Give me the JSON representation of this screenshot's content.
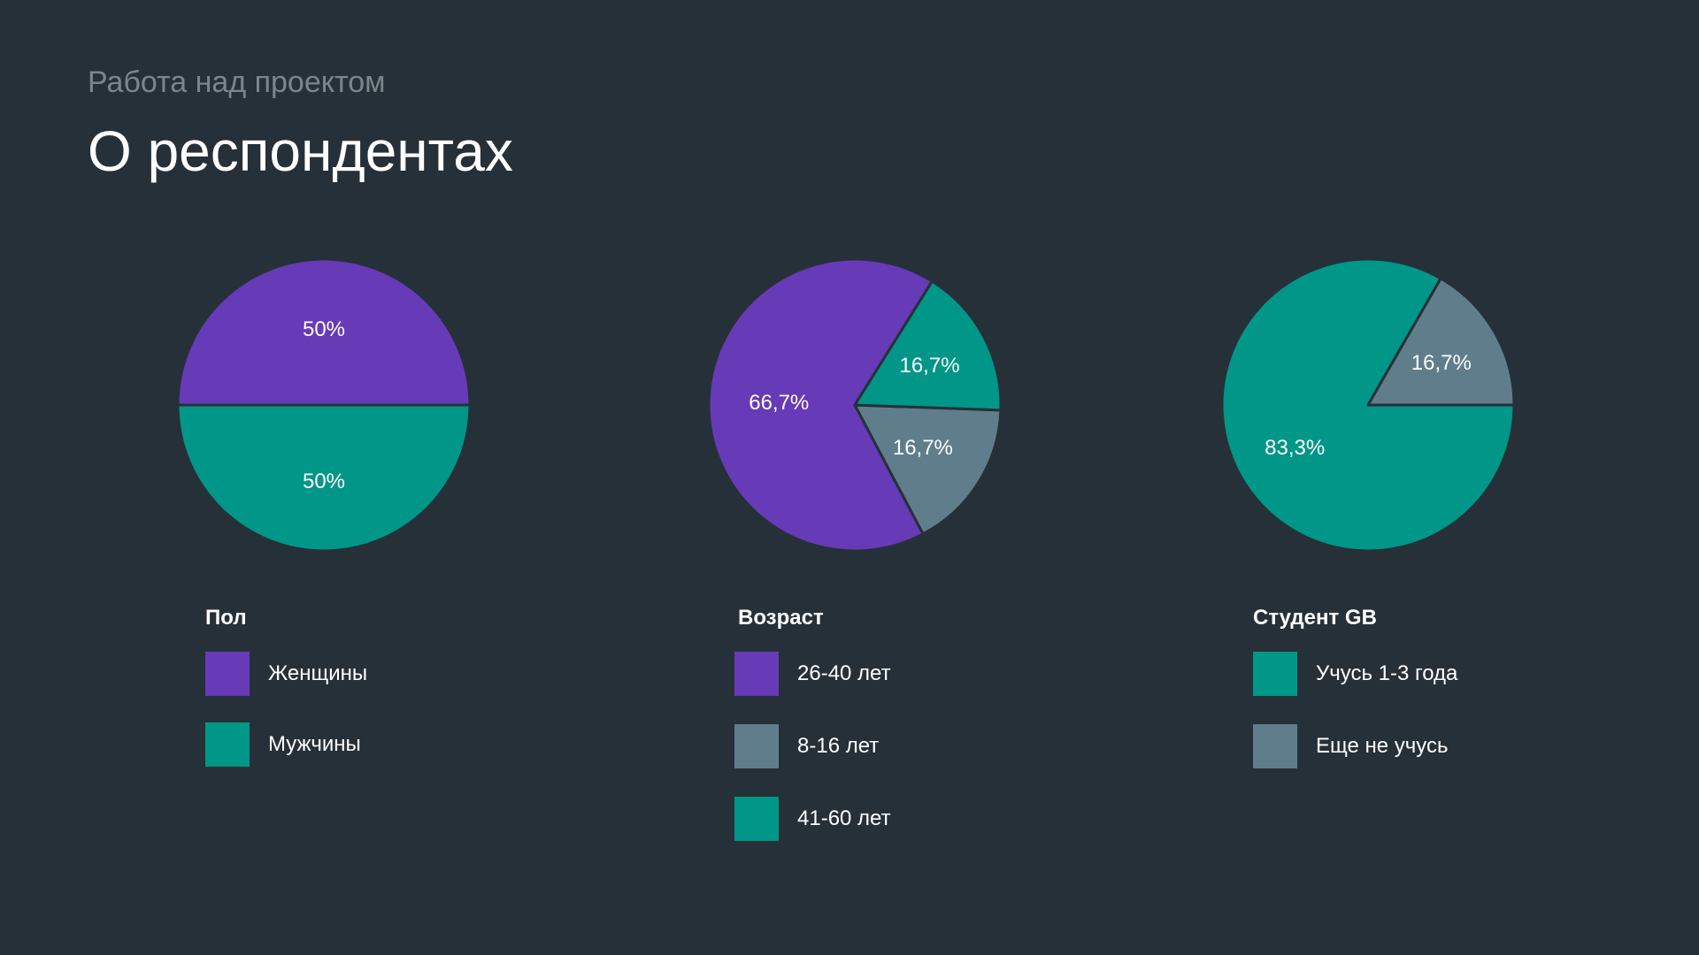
{
  "header": {
    "subtitle": "Работа над проектом",
    "title": "О респондентах"
  },
  "colors": {
    "background": "#263038",
    "purple": "#673ab7",
    "teal": "#009688",
    "gray": "#607d8b",
    "stroke": "#263038"
  },
  "chart_data": [
    {
      "type": "pie",
      "title": "Пол",
      "slices": [
        {
          "label": "Женщины",
          "value": 50,
          "display": "50%",
          "color": "#673ab7"
        },
        {
          "label": "Мужчины",
          "value": 50,
          "display": "50%",
          "color": "#009688"
        }
      ]
    },
    {
      "type": "pie",
      "title": "Возраст",
      "slices": [
        {
          "label": "26-40 лет",
          "value": 66.7,
          "display": "66,7%",
          "color": "#673ab7"
        },
        {
          "label": "8-16 лет",
          "value": 16.7,
          "display": "16,7%",
          "color": "#607d8b"
        },
        {
          "label": "41-60 лет",
          "value": 16.7,
          "display": "16,7%",
          "color": "#009688"
        }
      ]
    },
    {
      "type": "pie",
      "title": "Студент GB",
      "slices": [
        {
          "label": "Учусь 1-3 года",
          "value": 83.3,
          "display": "83,3%",
          "color": "#009688"
        },
        {
          "label": "Еще не учусь",
          "value": 16.7,
          "display": "16,7%",
          "color": "#607d8b"
        }
      ]
    }
  ]
}
